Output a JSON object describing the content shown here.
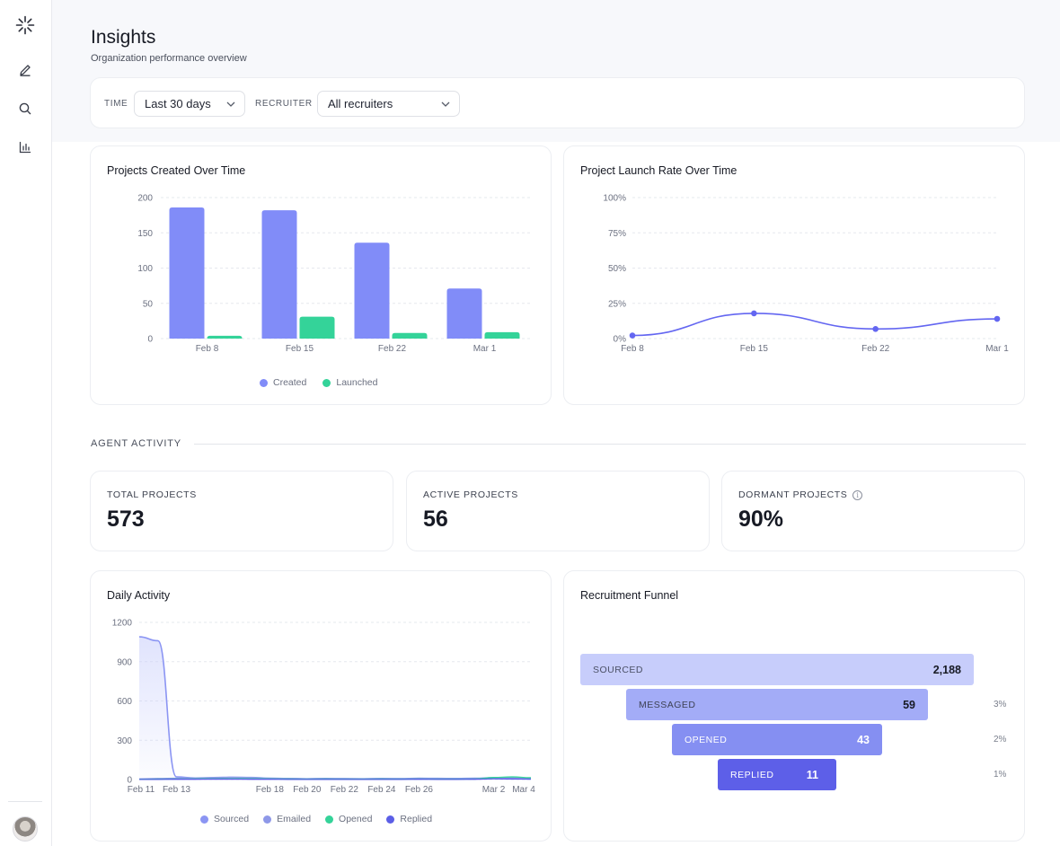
{
  "header": {
    "title": "Insights",
    "subtitle": "Organization performance overview"
  },
  "filters": {
    "time_label": "TIME",
    "time_value": "Last 30 days",
    "recruiter_label": "RECRUITER",
    "recruiter_value": "All recruiters"
  },
  "sidebar": {
    "icons": [
      "logo-burst-icon",
      "pencil-icon",
      "search-icon",
      "bar-chart-icon"
    ]
  },
  "colors": {
    "created": "#818cf8",
    "launched": "#34d399",
    "line": "#6366f1"
  },
  "chart_data": [
    {
      "type": "bar",
      "title": "Projects Created Over Time",
      "categories": [
        "Feb 8",
        "Feb 15",
        "Feb 22",
        "Mar 1"
      ],
      "series": [
        {
          "name": "Created",
          "values": [
            186,
            182,
            136,
            71
          ]
        },
        {
          "name": "Launched",
          "values": [
            4,
            31,
            8,
            9
          ]
        }
      ],
      "yticks": [
        "0",
        "50",
        "100",
        "150",
        "200"
      ],
      "ylim": [
        0,
        200
      ],
      "legend": "bottom"
    },
    {
      "type": "line",
      "title": "Project Launch Rate Over Time",
      "categories": [
        "Feb 8",
        "Feb 15",
        "Feb 22",
        "Mar 1"
      ],
      "series": [
        {
          "values": [
            2.2,
            17.9,
            6.8,
            14.0
          ]
        }
      ],
      "yticks": [
        "0%",
        "25%",
        "50%",
        "75%",
        "100%"
      ],
      "ylim": [
        0,
        100
      ]
    },
    {
      "type": "area",
      "title": "Daily Activity",
      "categories": [
        "Feb 11",
        "Feb 13",
        "Feb 18",
        "Feb 20",
        "Feb 22",
        "Feb 24",
        "Feb 26",
        "Mar 2",
        "Mar 4"
      ],
      "x": [
        "Feb 11",
        "Feb 12",
        "Feb 13",
        "Feb 14",
        "Feb 15",
        "Feb 16",
        "Feb 17",
        "Feb 18",
        "Feb 19",
        "Feb 20",
        "Feb 21",
        "Feb 22",
        "Feb 23",
        "Feb 24",
        "Feb 25",
        "Feb 26",
        "Feb 27",
        "Feb 28",
        "Mar 1",
        "Mar 2",
        "Mar 3",
        "Mar 4"
      ],
      "series": [
        {
          "name": "Sourced",
          "values": [
            1090,
            1060,
            20,
            12,
            15,
            18,
            16,
            10,
            8,
            6,
            8,
            7,
            6,
            8,
            7,
            10,
            9,
            8,
            10,
            14,
            12,
            10
          ]
        },
        {
          "name": "Emailed",
          "values": [
            5,
            8,
            10,
            12,
            14,
            16,
            14,
            10,
            8,
            6,
            7,
            6,
            5,
            7,
            6,
            8,
            7,
            6,
            8,
            12,
            10,
            8
          ]
        },
        {
          "name": "Opened",
          "values": [
            2,
            3,
            4,
            5,
            6,
            7,
            6,
            5,
            4,
            3,
            4,
            3,
            3,
            4,
            3,
            4,
            3,
            3,
            4,
            16,
            20,
            14
          ]
        },
        {
          "name": "Replied",
          "values": [
            1,
            1,
            2,
            2,
            3,
            3,
            2,
            2,
            1,
            1,
            1,
            1,
            1,
            1,
            1,
            2,
            1,
            1,
            2,
            5,
            4,
            3
          ]
        }
      ],
      "yticks": [
        "0",
        "300",
        "600",
        "900",
        "1200"
      ],
      "ylim": [
        0,
        1200
      ],
      "legend": "bottom"
    }
  ],
  "section": {
    "agent_activity": "AGENT ACTIVITY"
  },
  "stats": [
    {
      "label": "TOTAL PROJECTS",
      "value": "573"
    },
    {
      "label": "ACTIVE PROJECTS",
      "value": "56"
    },
    {
      "label": "DORMANT PROJECTS",
      "value": "90%"
    }
  ],
  "funnel": {
    "title": "Recruitment Funnel",
    "steps": [
      {
        "label": "SOURCED",
        "value": "2,188",
        "pct": ""
      },
      {
        "label": "MESSAGED",
        "value": "59",
        "pct": "3%"
      },
      {
        "label": "OPENED",
        "value": "43",
        "pct": "2%"
      },
      {
        "label": "REPLIED",
        "value": "11",
        "pct": "1%"
      }
    ]
  }
}
